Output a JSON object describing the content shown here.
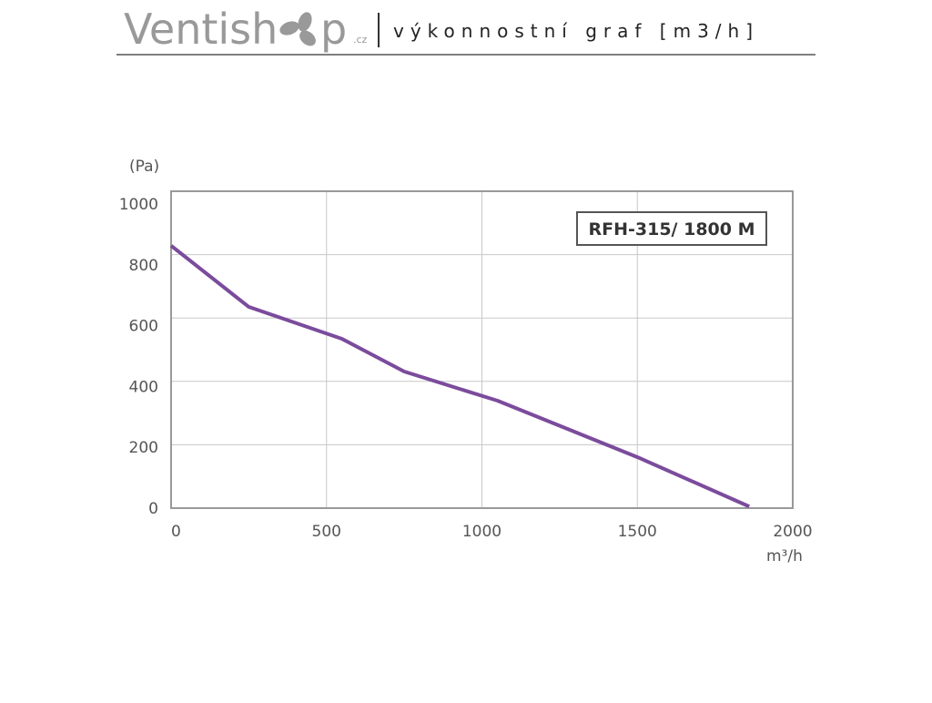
{
  "header": {
    "logo": "Ventish",
    "logo_end": "p",
    "logo_tld": ".cz",
    "subtitle": "výkonnostní graf [m3/h]"
  },
  "chart_data": {
    "type": "line",
    "y_label": "(Pa)",
    "x_label": "m³/h",
    "x": [
      0,
      250,
      550,
      750,
      1050,
      1500,
      1860
    ],
    "series": [
      {
        "name": "RFH-315/ 1800 M",
        "color": "#7b4b9c",
        "values": [
          828,
          635,
          534,
          431,
          339,
          161,
          5
        ]
      }
    ],
    "xlim": [
      0,
      2000
    ],
    "xticks": [
      0,
      500,
      1000,
      1500,
      2000
    ],
    "ylim": [
      0,
      1000
    ],
    "yticks": [
      0,
      200,
      400,
      600,
      800,
      1000
    ],
    "grid": true,
    "legend": "upper right"
  }
}
